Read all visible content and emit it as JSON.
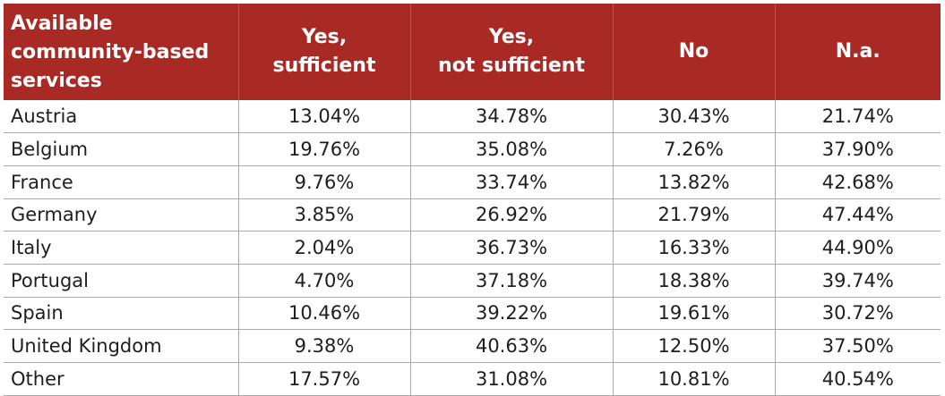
{
  "table": {
    "headers": [
      [
        "Available",
        "community-based",
        "services"
      ],
      [
        "Yes,",
        "sufficient"
      ],
      [
        "Yes,",
        "not sufficient"
      ],
      [
        "No"
      ],
      [
        "N.a."
      ]
    ],
    "rows": [
      {
        "country": "Austria",
        "values": [
          "13.04%",
          "34.78%",
          "30.43%",
          "21.74%"
        ]
      },
      {
        "country": "Belgium",
        "values": [
          "19.76%",
          "35.08%",
          "7.26%",
          "37.90%"
        ]
      },
      {
        "country": "France",
        "values": [
          "9.76%",
          "33.74%",
          "13.82%",
          "42.68%"
        ]
      },
      {
        "country": "Germany",
        "values": [
          "3.85%",
          "26.92%",
          "21.79%",
          "47.44%"
        ]
      },
      {
        "country": "Italy",
        "values": [
          "2.04%",
          "36.73%",
          "16.33%",
          "44.90%"
        ]
      },
      {
        "country": "Portugal",
        "values": [
          "4.70%",
          "37.18%",
          "18.38%",
          "39.74%"
        ]
      },
      {
        "country": "Spain",
        "values": [
          "10.46%",
          "39.22%",
          "19.61%",
          "30.72%"
        ]
      },
      {
        "country": "United Kingdom",
        "values": [
          "9.38%",
          "40.63%",
          "12.50%",
          "37.50%"
        ]
      },
      {
        "country": "Other",
        "values": [
          "17.57%",
          "31.08%",
          "10.81%",
          "40.54%"
        ]
      }
    ]
  }
}
